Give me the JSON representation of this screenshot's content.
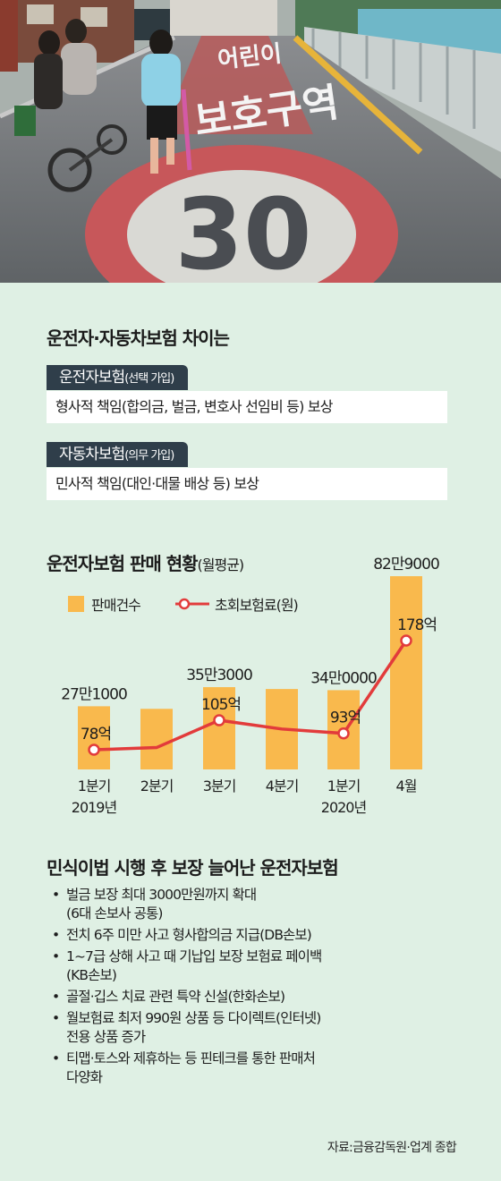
{
  "photo": {
    "road_text_1": "어린이",
    "road_text_2": "보호구역",
    "speed_limit": "30"
  },
  "difference": {
    "title": "운전자·자동차보험 차이는",
    "driver_ins": {
      "name": "운전자보험",
      "note": "(선택 가입)",
      "desc": "형사적 책임(합의금, 벌금, 변호사 선임비 등) 보상"
    },
    "car_ins": {
      "name": "자동차보험",
      "note": "(의무 가입)",
      "desc": "민사적 책임(대인·대물 배상 등) 보상"
    }
  },
  "chart_data": {
    "type": "bar",
    "title": "운전자보험 판매 현황",
    "subtitle": "(월평균)",
    "categories": [
      "1분기",
      "2분기",
      "3분기",
      "4분기",
      "1분기",
      "4월"
    ],
    "category_years": [
      "2019년",
      "",
      "",
      "",
      "2020년",
      ""
    ],
    "legend_position": "top-left",
    "series": [
      {
        "name": "판매건수",
        "kind": "bar",
        "color": "#f9b94d",
        "values": [
          271000,
          260000,
          353000,
          345000,
          340000,
          829000
        ],
        "labels": [
          "27만1000",
          "",
          "35만3000",
          "",
          "34만0000",
          "82만9000"
        ]
      },
      {
        "name": "초회보험료(원)",
        "kind": "line",
        "color": "#e23b3b",
        "values": [
          78,
          80,
          105,
          97,
          93,
          178
        ],
        "labels": [
          "78억",
          "",
          "105억",
          "",
          "93억",
          "178억"
        ]
      }
    ]
  },
  "changes": {
    "title": "민식이법 시행 후 보장 늘어난 운전자보험",
    "items": [
      [
        "벌금 보장 최대 3000만원까지 확대",
        "(6대 손보사 공통)"
      ],
      [
        "전치 6주 미만 사고 형사합의금 지급(DB손보)"
      ],
      [
        "1~7급 상해 사고 때 기납입 보장 보험료 페이백",
        "(KB손보)"
      ],
      [
        "골절·깁스 치료 관련 특약 신설(한화손보)"
      ],
      [
        "월보험료 최저 990원 상품 등 다이렉트(인터넷)",
        "전용 상품 증가"
      ],
      [
        "티맵·토스와 제휴하는 등 핀테크를 통한 판매처",
        "다양화"
      ]
    ]
  },
  "source": "자료:금융감독원·업계 종합"
}
